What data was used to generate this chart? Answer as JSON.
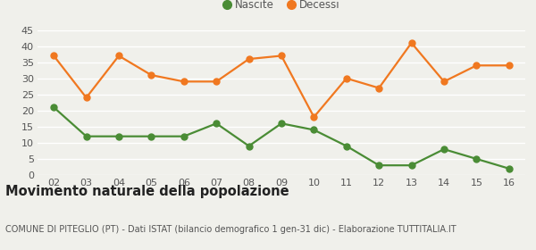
{
  "years": [
    "02",
    "03",
    "04",
    "05",
    "06",
    "07",
    "08",
    "09",
    "10",
    "11",
    "12",
    "13",
    "14",
    "15",
    "16"
  ],
  "nascite": [
    21,
    12,
    12,
    12,
    12,
    16,
    9,
    16,
    14,
    9,
    3,
    3,
    8,
    5,
    2
  ],
  "decessi": [
    37,
    24,
    37,
    31,
    29,
    29,
    36,
    37,
    18,
    30,
    27,
    41,
    29,
    34,
    34
  ],
  "nascite_color": "#4a8c35",
  "decessi_color": "#f07820",
  "background_color": "#f0f0eb",
  "grid_color": "#ffffff",
  "ylim": [
    0,
    45
  ],
  "yticks": [
    0,
    5,
    10,
    15,
    20,
    25,
    30,
    35,
    40,
    45
  ],
  "title": "Movimento naturale della popolazione",
  "subtitle": "COMUNE DI PITEGLIO (PT) - Dati ISTAT (bilancio demografico 1 gen-31 dic) - Elaborazione TUTTITALIA.IT",
  "legend_nascite": "Nascite",
  "legend_decessi": "Decessi",
  "marker_size": 5,
  "line_width": 1.6,
  "title_fontsize": 10.5,
  "subtitle_fontsize": 7,
  "tick_fontsize": 8,
  "legend_fontsize": 8.5
}
